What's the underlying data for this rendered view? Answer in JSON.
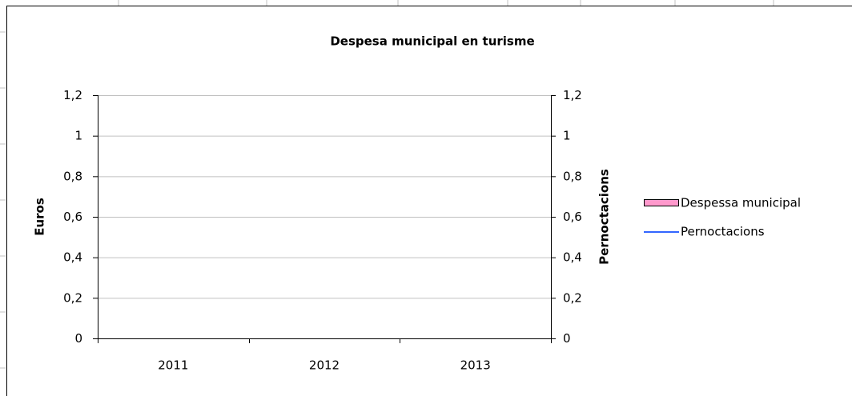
{
  "chart_data": {
    "type": "combo",
    "title": "Despesa municipal en turisme",
    "y_label": "Euros",
    "y2_label": "Pernoctacions",
    "categories": [
      "2011",
      "2012",
      "2013"
    ],
    "series": [
      {
        "name": "Despessa municipal",
        "type": "bar",
        "color": "#ff99cc",
        "values": [
          null,
          null,
          null
        ]
      },
      {
        "name": "Pernoctacions",
        "type": "line",
        "axis": "y2",
        "color": "#3366ff",
        "values": [
          null,
          null,
          null
        ]
      }
    ],
    "ylim": [
      0,
      1.2
    ],
    "yticks": [
      0,
      {
        "value": 0.2,
        "label": "0,2"
      },
      {
        "value": 0.4,
        "label": "0,4"
      },
      {
        "value": 0.6,
        "label": "0,6"
      },
      {
        "value": 0.8,
        "label": "0,8"
      },
      1,
      {
        "value": 1.2,
        "label": "1,2"
      }
    ],
    "y2lim": [
      0,
      1.2
    ],
    "y2ticks": [
      0,
      {
        "value": 0.2,
        "label": "0,2"
      },
      {
        "value": 0.4,
        "label": "0,4"
      },
      {
        "value": 0.6,
        "label": "0,6"
      },
      {
        "value": 0.8,
        "label": "0,8"
      },
      1,
      {
        "value": 1.2,
        "label": "1,2"
      }
    ],
    "grid": true,
    "legend": "right"
  }
}
